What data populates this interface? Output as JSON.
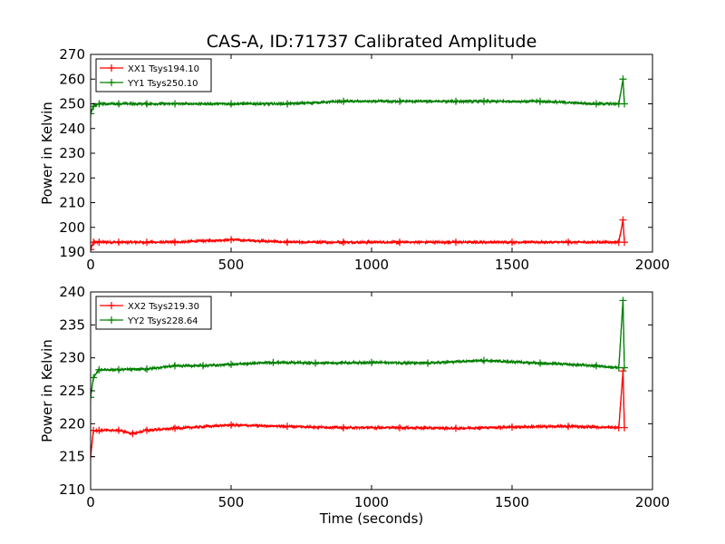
{
  "figure": {
    "title": "CAS-A, ID:71737 Calibrated Amplitude"
  },
  "chart_data": [
    {
      "type": "line",
      "ylabel": "Power in Kelvin",
      "xlabel": "",
      "xlim": [
        0,
        2000
      ],
      "ylim": [
        190,
        270
      ],
      "xticks": [
        0,
        500,
        1000,
        1500,
        2000
      ],
      "yticks": [
        190,
        200,
        210,
        220,
        230,
        240,
        250,
        260,
        270
      ],
      "grid": false,
      "legend_position": "top-left",
      "series": [
        {
          "name": "XX1 Tsys194.10",
          "color": "#ff0000",
          "x": [
            0,
            10,
            30,
            100,
            200,
            300,
            500,
            700,
            900,
            1100,
            1300,
            1500,
            1700,
            1880,
            1895,
            1900
          ],
          "values": [
            191,
            194,
            194,
            194,
            194,
            194,
            195,
            194,
            194,
            194,
            194,
            194,
            194,
            194,
            203,
            194
          ]
        },
        {
          "name": "YY1 Tsys250.10",
          "color": "#008000",
          "x": [
            0,
            10,
            30,
            100,
            200,
            300,
            500,
            700,
            900,
            1100,
            1300,
            1400,
            1600,
            1800,
            1880,
            1895,
            1900
          ],
          "values": [
            246,
            249,
            250,
            250,
            250,
            250,
            250,
            250,
            251,
            251,
            251,
            251,
            251,
            250,
            250,
            260,
            250
          ]
        }
      ]
    },
    {
      "type": "line",
      "ylabel": "Power in Kelvin",
      "xlabel": "Time (seconds)",
      "xlim": [
        0,
        2000
      ],
      "ylim": [
        210,
        240
      ],
      "xticks": [
        0,
        500,
        1000,
        1500,
        2000
      ],
      "yticks": [
        210,
        215,
        220,
        225,
        230,
        235,
        240
      ],
      "grid": false,
      "legend_position": "top-left",
      "series": [
        {
          "name": "XX2 Tsys219.30",
          "color": "#ff0000",
          "x": [
            0,
            10,
            30,
            100,
            150,
            200,
            300,
            500,
            700,
            900,
            1100,
            1300,
            1500,
            1700,
            1880,
            1895,
            1900
          ],
          "values": [
            215,
            219,
            219,
            219,
            218.5,
            219,
            219.3,
            219.8,
            219.6,
            219.4,
            219.4,
            219.3,
            219.5,
            219.6,
            219.4,
            228,
            219.4
          ]
        },
        {
          "name": "YY2 Tsys228.64",
          "color": "#008000",
          "x": [
            0,
            10,
            30,
            100,
            200,
            300,
            400,
            500,
            650,
            800,
            1000,
            1200,
            1400,
            1600,
            1800,
            1880,
            1895,
            1900
          ],
          "values": [
            224,
            227,
            228.2,
            228.2,
            228.3,
            228.8,
            228.8,
            229,
            229.3,
            229.2,
            229.3,
            229.2,
            229.6,
            229.2,
            228.8,
            228.5,
            238.7,
            228.5
          ]
        }
      ]
    }
  ]
}
